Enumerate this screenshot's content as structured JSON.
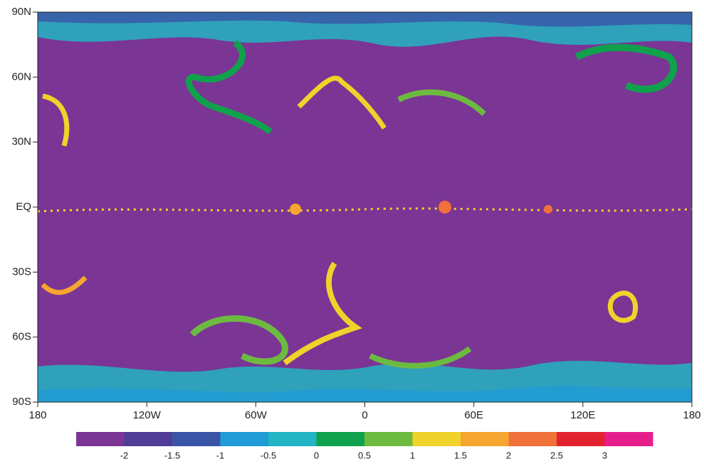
{
  "map": {
    "xlim": [
      -180,
      180
    ],
    "ylim": [
      -90,
      90
    ],
    "xticks": [
      {
        "value": -180,
        "label": "180"
      },
      {
        "value": -120,
        "label": "120W"
      },
      {
        "value": -60,
        "label": "60W"
      },
      0,
      {
        "value": 60,
        "label": "60E"
      },
      {
        "value": 120,
        "label": "120E"
      },
      {
        "value": 180,
        "label": "180"
      }
    ],
    "yticks": [
      {
        "value": 90,
        "label": "90N"
      },
      {
        "value": 60,
        "label": "60N"
      },
      {
        "value": 30,
        "label": "30N"
      },
      {
        "value": 0,
        "label": "EQ"
      },
      {
        "value": -30,
        "label": "30S"
      },
      {
        "value": -60,
        "label": "60S"
      },
      {
        "value": -90,
        "label": "90S"
      }
    ],
    "colorbar": {
      "clim": [
        -2.5,
        3.5
      ],
      "colors": [
        "#7b3594",
        "#4f3d97",
        "#3a55a6",
        "#1f9bd7",
        "#22b4c2",
        "#10a14c",
        "#6cbb40",
        "#f0d22b",
        "#f5a530",
        "#f0713a",
        "#e3222f",
        "#e61e8c"
      ],
      "ticks": [
        -2,
        -1.5,
        -1,
        -0.5,
        0,
        0.5,
        1,
        1.5,
        2,
        2.5,
        3
      ]
    }
  }
}
